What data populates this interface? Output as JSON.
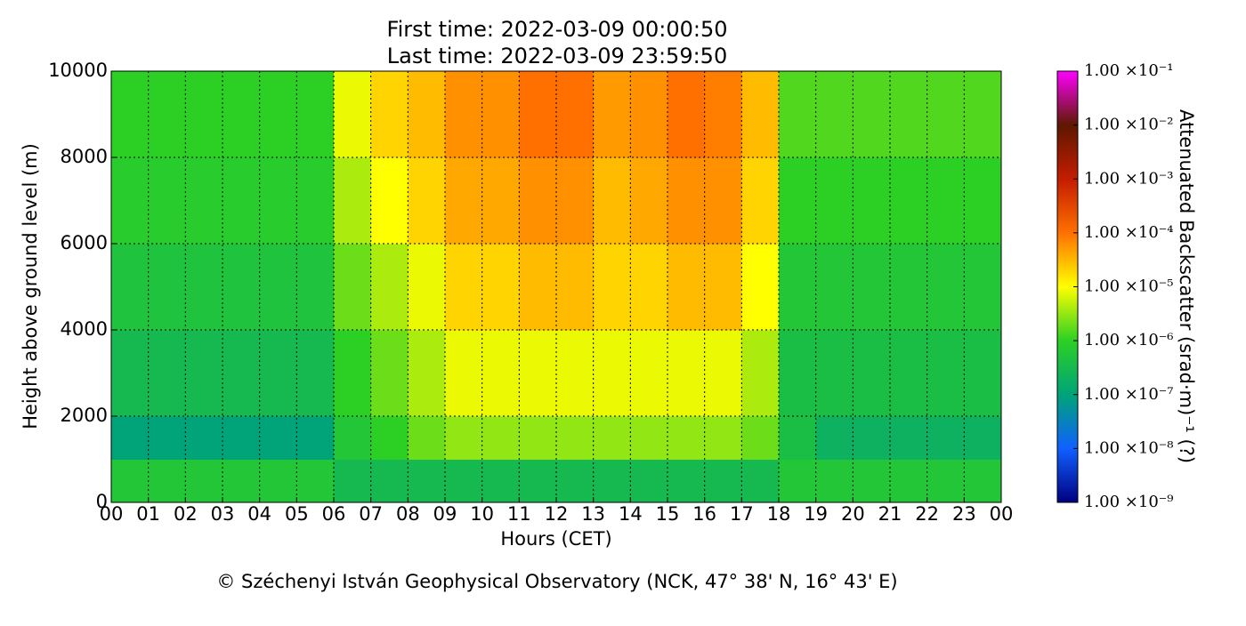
{
  "chart_data": {
    "type": "heatmap",
    "title": [
      "First time: 2022-03-09 00:00:50",
      "Last time: 2022-03-09 23:59:50"
    ],
    "xlabel": "Hours (CET)",
    "ylabel": "Height above ground level (m)",
    "footer": "© Széchenyi István Geophysical Observatory (NCK, 47° 38' N, 16° 43' E)",
    "xlim": [
      0,
      24
    ],
    "ylim": [
      0,
      10000
    ],
    "xticks": [
      {
        "value": 0,
        "label": "00"
      },
      {
        "value": 1,
        "label": "01"
      },
      {
        "value": 2,
        "label": "02"
      },
      {
        "value": 3,
        "label": "03"
      },
      {
        "value": 4,
        "label": "04"
      },
      {
        "value": 5,
        "label": "05"
      },
      {
        "value": 6,
        "label": "06"
      },
      {
        "value": 7,
        "label": "07"
      },
      {
        "value": 8,
        "label": "08"
      },
      {
        "value": 9,
        "label": "09"
      },
      {
        "value": 10,
        "label": "10"
      },
      {
        "value": 11,
        "label": "11"
      },
      {
        "value": 12,
        "label": "12"
      },
      {
        "value": 13,
        "label": "13"
      },
      {
        "value": 14,
        "label": "14"
      },
      {
        "value": 15,
        "label": "15"
      },
      {
        "value": 16,
        "label": "16"
      },
      {
        "value": 17,
        "label": "17"
      },
      {
        "value": 18,
        "label": "18"
      },
      {
        "value": 19,
        "label": "19"
      },
      {
        "value": 20,
        "label": "20"
      },
      {
        "value": 21,
        "label": "21"
      },
      {
        "value": 22,
        "label": "22"
      },
      {
        "value": 23,
        "label": "23"
      },
      {
        "value": 24,
        "label": "00"
      }
    ],
    "yticks": [
      0,
      2000,
      4000,
      6000,
      8000,
      10000
    ],
    "grid": true,
    "xbins": [
      0,
      1,
      2,
      3,
      4,
      5,
      6,
      7,
      8,
      9,
      10,
      11,
      12,
      13,
      14,
      15,
      16,
      17,
      18,
      19,
      20,
      21,
      22,
      23,
      24
    ],
    "ybins": [
      0,
      1000,
      2000,
      4000,
      6000,
      8000,
      10000
    ],
    "z": [
      [
        6e-07,
        6e-07,
        6e-07,
        6e-07,
        6e-07,
        6e-07,
        3e-07,
        3e-07,
        3e-07,
        3e-07,
        3e-07,
        3e-07,
        3e-07,
        3e-07,
        3e-07,
        3e-07,
        3e-07,
        3e-07,
        6e-07,
        6e-07,
        6e-07,
        6e-07,
        6e-07,
        6e-07
      ],
      [
        1e-07,
        1e-07,
        1e-07,
        1e-07,
        1e-07,
        1e-07,
        6e-07,
        1e-06,
        2e-06,
        3e-06,
        3e-06,
        3e-06,
        3e-06,
        3e-06,
        3e-06,
        3e-06,
        3e-06,
        2e-06,
        4e-07,
        2e-07,
        2e-07,
        2e-07,
        2e-07,
        2e-07
      ],
      [
        3e-07,
        3e-07,
        3e-07,
        3e-07,
        3e-07,
        3e-07,
        1e-06,
        2e-06,
        4e-06,
        8e-06,
        8e-06,
        8e-06,
        8e-06,
        8e-06,
        8e-06,
        8e-06,
        8e-06,
        4e-06,
        4e-07,
        4e-07,
        4e-07,
        4e-07,
        4e-07,
        4e-07
      ],
      [
        5e-07,
        5e-07,
        5e-07,
        5e-07,
        5e-07,
        5e-07,
        2e-06,
        4e-06,
        8e-06,
        2e-05,
        2e-05,
        3e-05,
        3e-05,
        2e-05,
        2e-05,
        3e-05,
        3e-05,
        1e-05,
        6e-07,
        6e-07,
        6e-07,
        6e-07,
        6e-07,
        6e-07
      ],
      [
        8e-07,
        8e-07,
        8e-07,
        8e-07,
        8e-07,
        8e-07,
        4e-06,
        1e-05,
        2e-05,
        4e-05,
        4e-05,
        6e-05,
        6e-05,
        3e-05,
        4e-05,
        6e-05,
        6e-05,
        2e-05,
        1e-06,
        1e-06,
        1e-06,
        1e-06,
        1e-06,
        1e-06
      ],
      [
        1e-06,
        1e-06,
        1e-06,
        1e-06,
        1e-06,
        1e-06,
        8e-06,
        2e-05,
        3e-05,
        6e-05,
        6e-05,
        0.0001,
        0.0001,
        5e-05,
        6e-05,
        0.0001,
        8e-05,
        3e-05,
        1.5e-06,
        1.5e-06,
        1.5e-06,
        1.5e-06,
        1.5e-06,
        1.5e-06
      ]
    ],
    "colorbar": {
      "label": "Attenuated Backscatter (srad·m)⁻¹ (?)",
      "log": true,
      "lim": [
        1e-09,
        0.1
      ],
      "ticks": [
        {
          "value": 1e-09,
          "label": "1.00 ×10⁻⁹"
        },
        {
          "value": 1e-08,
          "label": "1.00 ×10⁻⁸"
        },
        {
          "value": 1e-07,
          "label": "1.00 ×10⁻⁷"
        },
        {
          "value": 1e-06,
          "label": "1.00 ×10⁻⁶"
        },
        {
          "value": 1e-05,
          "label": "1.00 ×10⁻⁵"
        },
        {
          "value": 0.0001,
          "label": "1.00 ×10⁻⁴"
        },
        {
          "value": 0.001,
          "label": "1.00 ×10⁻³"
        },
        {
          "value": 0.01,
          "label": "1.00 ×10⁻²"
        },
        {
          "value": 0.1,
          "label": "1.00 ×10⁻¹"
        }
      ],
      "colormap": [
        "#000080",
        "#1060ff",
        "#00a478",
        "#2cd024",
        "#ffff00",
        "#ff7000",
        "#c41c00",
        "#5e1800",
        "#ff00ff"
      ]
    }
  }
}
